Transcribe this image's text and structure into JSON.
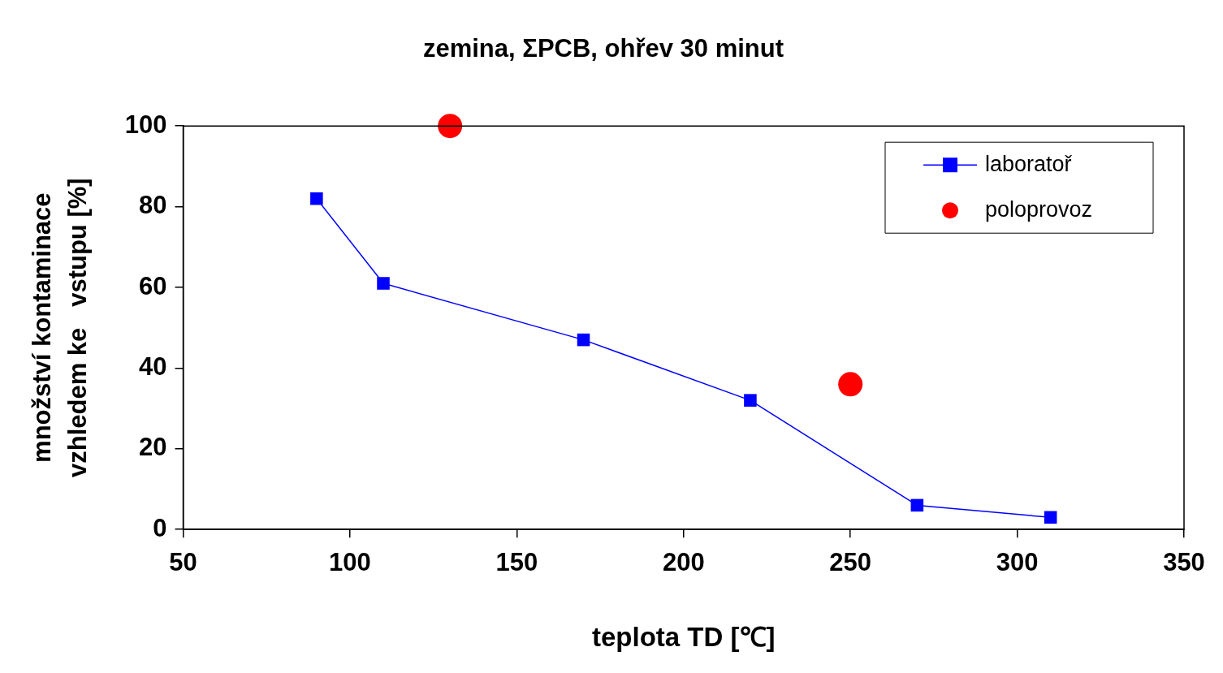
{
  "chart_data": {
    "type": "line",
    "title": "zemina, ΣPCB, ohřev 30 minut",
    "xlabel": "teplota TD [℃]",
    "ylabel": "množství kontaminace\nvzhledem ke   vstupu [%]",
    "xlim": [
      50,
      350
    ],
    "xticks": [
      50,
      100,
      150,
      200,
      250,
      300,
      350
    ],
    "ylim": [
      0,
      100
    ],
    "yticks": [
      0,
      20,
      40,
      60,
      80,
      100
    ],
    "grid": false,
    "legend": "top right",
    "series": [
      {
        "name": "laboratoř",
        "type": "line",
        "color": "#0000ff",
        "marker": "square",
        "x": [
          90,
          110,
          170,
          220,
          270,
          310
        ],
        "values": [
          82,
          61,
          47,
          32,
          6,
          3
        ]
      },
      {
        "name": "poloprovoz",
        "type": "scatter",
        "color": "#ff0000",
        "marker": "circle",
        "x": [
          130,
          250
        ],
        "values": [
          100,
          36
        ]
      }
    ]
  }
}
